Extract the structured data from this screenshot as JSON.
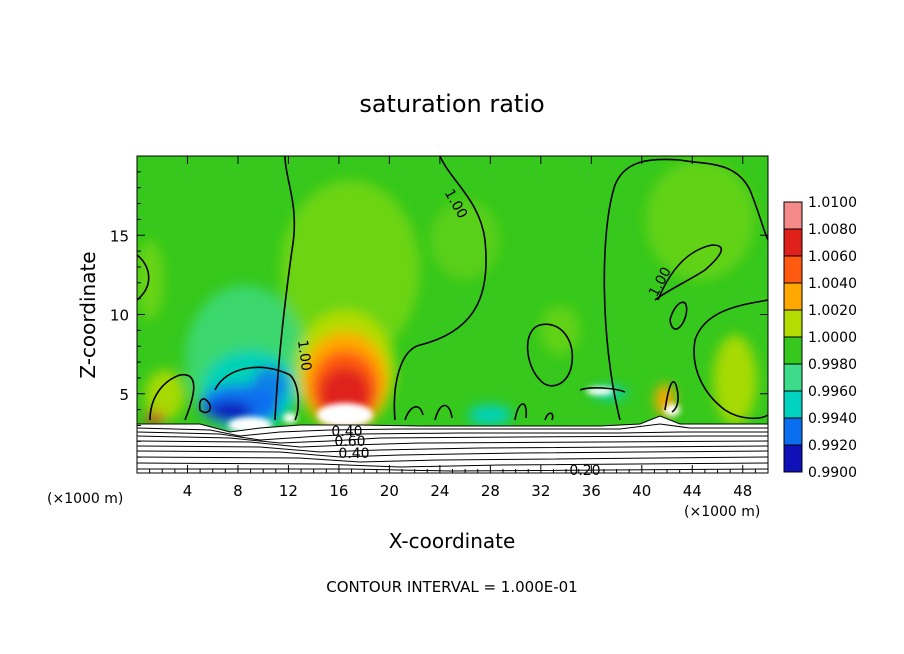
{
  "chart_data": {
    "type": "heatmap",
    "title": "saturation ratio",
    "xlabel": "X-coordinate",
    "ylabel": "Z-coordinate",
    "x_unit_left": "(×1000 m)",
    "x_unit_right": "(×1000 m)",
    "xlim": [
      0,
      50
    ],
    "ylim": [
      0,
      20
    ],
    "x_ticks": [
      4,
      8,
      12,
      16,
      20,
      24,
      28,
      32,
      36,
      40,
      44,
      48
    ],
    "x_tick_labels": [
      "4",
      "8",
      "12",
      "16",
      "20",
      "24",
      "28",
      "32",
      "36",
      "40",
      "44",
      "48"
    ],
    "y_ticks": [
      5,
      10,
      15
    ],
    "y_tick_labels": [
      "5",
      "10",
      "15"
    ],
    "colorbar": {
      "levels": [
        "1.0100",
        "1.0080",
        "1.0060",
        "1.0040",
        "1.0020",
        "1.0000",
        "0.9980",
        "0.9960",
        "0.9940",
        "0.9920",
        "0.9900"
      ],
      "colors": [
        "#f58a8a",
        "#e0201a",
        "#ff5a10",
        "#ffa800",
        "#b4dc00",
        "#36c81c",
        "#3edc8a",
        "#00d2c0",
        "#0a6ef0",
        "#1010b8",
        "#5a148c"
      ]
    },
    "contour_labels": [
      "1.00",
      "1.00",
      "1.00",
      "0.40",
      "0.60",
      "0.40",
      "0.20"
    ],
    "footer": "CONTOUR INTERVAL = 1.000E-01"
  }
}
